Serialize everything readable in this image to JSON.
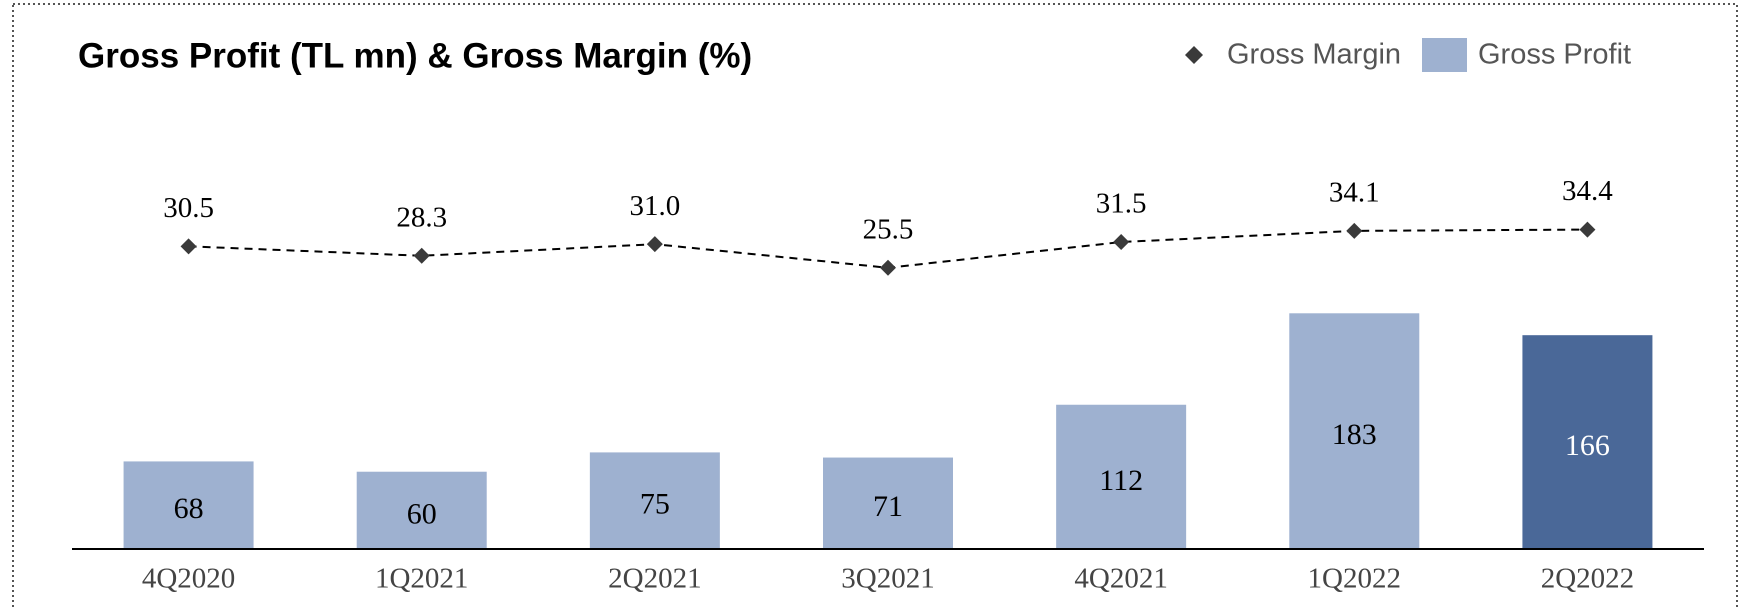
{
  "chart_data": {
    "type": "bar-line",
    "title": "Gross Profit (TL mn) & Gross Margin (%)",
    "categories": [
      "4Q2020",
      "1Q2021",
      "2Q2021",
      "3Q2021",
      "4Q2021",
      "1Q2022",
      "2Q2022"
    ],
    "series": [
      {
        "name": "Gross Profit",
        "type": "bar",
        "color": "#9eb1d0",
        "colors": [
          "#9eb1d0",
          "#9eb1d0",
          "#9eb1d0",
          "#9eb1d0",
          "#9eb1d0",
          "#9eb1d0",
          "#4a6898"
        ],
        "values": [
          68,
          60,
          75,
          71,
          112,
          183,
          166
        ]
      },
      {
        "name": "Gross Margin",
        "type": "line",
        "axis": "y2",
        "color": "#3a3a3a",
        "values": [
          30.5,
          28.3,
          31.0,
          25.5,
          31.5,
          34.1,
          34.4
        ],
        "value_labels": [
          "30.5",
          "28.3",
          "31.0",
          "25.5",
          "31.5",
          "34.1",
          "34.4"
        ]
      }
    ],
    "ylim": [
      0,
      250
    ],
    "y2lim": [
      -40,
      35
    ],
    "legend": "top-right"
  }
}
